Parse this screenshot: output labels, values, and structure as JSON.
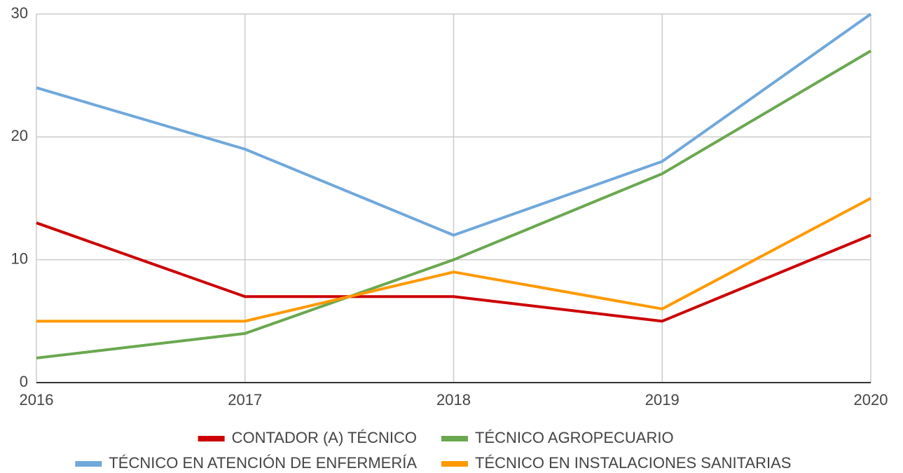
{
  "chart_data": {
    "type": "line",
    "x": [
      2016,
      2017,
      2018,
      2019,
      2020
    ],
    "xlim": [
      2016,
      2020
    ],
    "xticks": [
      2016,
      2017,
      2018,
      2019,
      2020
    ],
    "ylim": [
      0,
      30
    ],
    "yticks": [
      0,
      10,
      20,
      30
    ],
    "grid": true,
    "series": [
      {
        "name": "CONTADOR (A) TÉCNICO",
        "color": "#cc0000",
        "values": [
          13,
          7,
          7,
          5,
          12
        ]
      },
      {
        "name": "TÉCNICO AGROPECUARIO",
        "color": "#6aa84f",
        "values": [
          2,
          4,
          10,
          17,
          27
        ]
      },
      {
        "name": "TÉCNICO EN ATENCIÓN DE ENFERMERÍA",
        "color": "#6fa8dc",
        "values": [
          24,
          19,
          12,
          18,
          30
        ]
      },
      {
        "name": "TÉCNICO EN INSTALACIONES SANITARIAS",
        "color": "#ff9900",
        "values": [
          5,
          5,
          9,
          6,
          15
        ]
      }
    ]
  }
}
